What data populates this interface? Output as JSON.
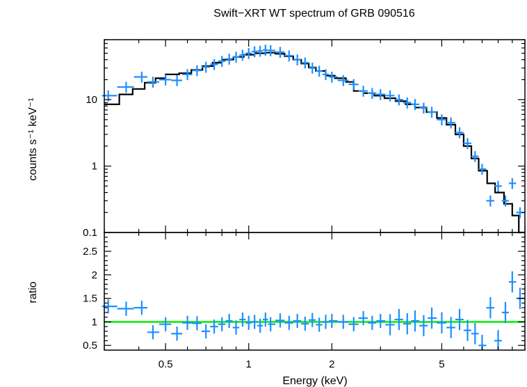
{
  "chart_data": [
    {
      "type": "scatter",
      "title": "Swift−XRT WT spectrum of GRB 090516",
      "ylabel": "counts s⁻¹ keV⁻¹",
      "xscale": "log",
      "yscale": "log",
      "xlim": [
        0.3,
        10.0
      ],
      "ylim": [
        0.1,
        80
      ],
      "ytick_labels": [
        "0.1",
        "1",
        "10"
      ],
      "ytick_values": [
        0.1,
        1,
        10
      ],
      "data_color": "#1e8fff",
      "model_color": "#000000",
      "series": [
        {
          "name": "",
          "kind": "data-with-errors",
          "points": [
            [
              0.31,
              11.5
            ],
            [
              0.36,
              15.5
            ],
            [
              0.41,
              22.0
            ],
            [
              0.45,
              18.5
            ],
            [
              0.5,
              20.0
            ],
            [
              0.55,
              19.5
            ],
            [
              0.6,
              24.0
            ],
            [
              0.65,
              27.5
            ],
            [
              0.7,
              31.0
            ],
            [
              0.75,
              34.0
            ],
            [
              0.8,
              38.0
            ],
            [
              0.85,
              41.0
            ],
            [
              0.9,
              44.0
            ],
            [
              0.95,
              47.0
            ],
            [
              1.0,
              50.0
            ],
            [
              1.05,
              53.0
            ],
            [
              1.1,
              54.0
            ],
            [
              1.15,
              56.0
            ],
            [
              1.2,
              55.0
            ],
            [
              1.3,
              52.0
            ],
            [
              1.4,
              46.0
            ],
            [
              1.5,
              40.0
            ],
            [
              1.6,
              36.0
            ],
            [
              1.7,
              30.0
            ],
            [
              1.8,
              27.0
            ],
            [
              1.9,
              24.0
            ],
            [
              2.0,
              22.0
            ],
            [
              2.2,
              19.5
            ],
            [
              2.4,
              17.0
            ],
            [
              2.6,
              13.5
            ],
            [
              2.8,
              12.5
            ],
            [
              3.0,
              12.0
            ],
            [
              3.25,
              11.5
            ],
            [
              3.5,
              10.0
            ],
            [
              3.75,
              9.0
            ],
            [
              4.0,
              8.5
            ],
            [
              4.3,
              7.5
            ],
            [
              4.6,
              6.5
            ],
            [
              5.0,
              5.0
            ],
            [
              5.4,
              4.5
            ],
            [
              5.8,
              3.2
            ],
            [
              6.2,
              2.2
            ],
            [
              6.6,
              1.4
            ],
            [
              7.0,
              0.9
            ],
            [
              7.5,
              0.3
            ],
            [
              8.0,
              0.5
            ],
            [
              8.5,
              0.3
            ],
            [
              9.0,
              0.55
            ],
            [
              9.6,
              0.2
            ]
          ]
        },
        {
          "name": "",
          "kind": "model-step",
          "points": [
            [
              0.3,
              8.5
            ],
            [
              0.34,
              12.0
            ],
            [
              0.38,
              14.5
            ],
            [
              0.42,
              18.0
            ],
            [
              0.46,
              21.0
            ],
            [
              0.5,
              24.0
            ],
            [
              0.56,
              25.0
            ],
            [
              0.62,
              28.0
            ],
            [
              0.68,
              32.0
            ],
            [
              0.74,
              36.0
            ],
            [
              0.8,
              40.0
            ],
            [
              0.88,
              44.0
            ],
            [
              0.96,
              47.5
            ],
            [
              1.05,
              50.0
            ],
            [
              1.15,
              51.0
            ],
            [
              1.25,
              49.0
            ],
            [
              1.35,
              45.0
            ],
            [
              1.45,
              40.0
            ],
            [
              1.55,
              35.0
            ],
            [
              1.65,
              30.5
            ],
            [
              1.75,
              27.0
            ],
            [
              1.9,
              23.0
            ],
            [
              2.05,
              21.0
            ],
            [
              2.25,
              18.5
            ],
            [
              2.4,
              13.5
            ],
            [
              2.6,
              12.5
            ],
            [
              2.85,
              11.5
            ],
            [
              3.1,
              10.5
            ],
            [
              3.4,
              9.5
            ],
            [
              3.7,
              8.5
            ],
            [
              4.0,
              7.6
            ],
            [
              4.4,
              6.5
            ],
            [
              4.8,
              5.3
            ],
            [
              5.2,
              4.2
            ],
            [
              5.6,
              3.0
            ],
            [
              6.0,
              2.0
            ],
            [
              6.4,
              1.3
            ],
            [
              6.8,
              0.85
            ],
            [
              7.3,
              0.55
            ],
            [
              7.8,
              0.4
            ],
            [
              8.4,
              0.27
            ],
            [
              9.0,
              0.18
            ],
            [
              9.5,
              0.1
            ]
          ]
        }
      ]
    },
    {
      "type": "scatter",
      "xlabel": "Energy (keV)",
      "ylabel": "ratio",
      "xscale": "log",
      "xlim": [
        0.3,
        10.0
      ],
      "ylim": [
        0.4,
        2.9
      ],
      "xtick_labels": [
        "0.5",
        "1",
        "2",
        "5"
      ],
      "xtick_values": [
        0.5,
        1,
        2,
        5
      ],
      "ytick_labels": [
        "0.5",
        "1",
        "1.5",
        "2",
        "2.5"
      ],
      "ytick_values": [
        0.5,
        1,
        1.5,
        2,
        2.5
      ],
      "reference_line": 1.0,
      "reference_color": "#00ee00",
      "data_color": "#1e8fff",
      "series": [
        {
          "name": "",
          "kind": "data-with-errors",
          "points": [
            [
              0.31,
              1.33
            ],
            [
              0.36,
              1.28
            ],
            [
              0.41,
              1.3
            ],
            [
              0.45,
              0.78
            ],
            [
              0.5,
              0.95
            ],
            [
              0.55,
              0.75
            ],
            [
              0.6,
              0.98
            ],
            [
              0.65,
              0.97
            ],
            [
              0.7,
              0.8
            ],
            [
              0.75,
              0.9
            ],
            [
              0.8,
              0.95
            ],
            [
              0.85,
              1.02
            ],
            [
              0.9,
              0.88
            ],
            [
              0.95,
              1.05
            ],
            [
              1.0,
              0.98
            ],
            [
              1.05,
              1.0
            ],
            [
              1.1,
              0.92
            ],
            [
              1.15,
              1.05
            ],
            [
              1.2,
              0.95
            ],
            [
              1.3,
              1.03
            ],
            [
              1.4,
              0.98
            ],
            [
              1.5,
              1.02
            ],
            [
              1.6,
              0.96
            ],
            [
              1.7,
              1.04
            ],
            [
              1.8,
              0.94
            ],
            [
              1.9,
              1.0
            ],
            [
              2.0,
              1.02
            ],
            [
              2.2,
              1.0
            ],
            [
              2.4,
              0.95
            ],
            [
              2.6,
              1.08
            ],
            [
              2.8,
              0.98
            ],
            [
              3.0,
              1.02
            ],
            [
              3.25,
              0.94
            ],
            [
              3.5,
              1.05
            ],
            [
              3.75,
              0.96
            ],
            [
              4.0,
              1.02
            ],
            [
              4.3,
              0.92
            ],
            [
              4.6,
              1.08
            ],
            [
              5.0,
              0.98
            ],
            [
              5.4,
              0.88
            ],
            [
              5.8,
              1.05
            ],
            [
              6.2,
              0.82
            ],
            [
              6.6,
              0.75
            ],
            [
              7.0,
              0.5
            ],
            [
              7.5,
              1.3
            ],
            [
              8.0,
              0.6
            ],
            [
              8.5,
              1.2
            ],
            [
              9.0,
              1.85
            ],
            [
              9.6,
              1.5
            ]
          ]
        }
      ]
    }
  ]
}
